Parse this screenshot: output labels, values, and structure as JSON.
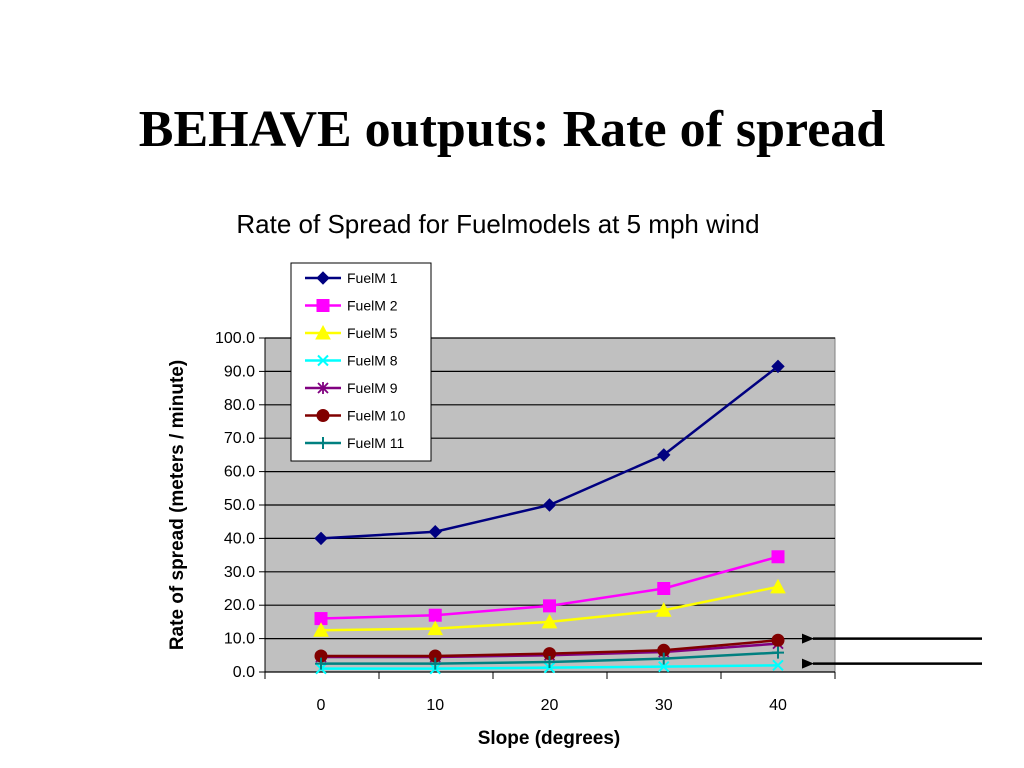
{
  "slide": {
    "title": "BEHAVE outputs: Rate of spread"
  },
  "chart_data": {
    "type": "line",
    "title": "Rate of Spread for Fuelmodels at 5 mph wind",
    "xlabel": "Slope (degrees)",
    "ylabel": "Rate of spread (meters / minute)",
    "x": [
      0,
      10,
      20,
      30,
      40
    ],
    "xlim": [
      0,
      40
    ],
    "ylim": [
      0,
      100
    ],
    "y_ticks": [
      "0.0",
      "10.0",
      "20.0",
      "30.0",
      "40.0",
      "50.0",
      "60.0",
      "70.0",
      "80.0",
      "90.0",
      "100.0"
    ],
    "x_ticks": [
      "0",
      "10",
      "20",
      "30",
      "40"
    ],
    "grid": true,
    "plot_background": "#c0c0c0",
    "legend_placement": "top-left (overlapping plot)",
    "series": [
      {
        "name": "FuelM 1",
        "color": "#000080",
        "marker": "diamond",
        "values": [
          40.0,
          42.0,
          50.0,
          65.0,
          91.5
        ]
      },
      {
        "name": "FuelM 2",
        "color": "#ff00ff",
        "marker": "square",
        "values": [
          16.0,
          17.0,
          19.8,
          25.0,
          34.5
        ]
      },
      {
        "name": "FuelM 5",
        "color": "#ffff00",
        "marker": "triangle",
        "values": [
          12.5,
          13.0,
          15.0,
          18.5,
          25.5
        ]
      },
      {
        "name": "FuelM 8",
        "color": "#00ffff",
        "marker": "x",
        "values": [
          1.0,
          1.0,
          1.3,
          1.6,
          2.0
        ]
      },
      {
        "name": "FuelM 9",
        "color": "#800080",
        "marker": "star",
        "values": [
          4.5,
          4.5,
          5.0,
          6.0,
          8.5
        ]
      },
      {
        "name": "FuelM 10",
        "color": "#800000",
        "marker": "circle",
        "values": [
          4.8,
          4.8,
          5.5,
          6.5,
          9.5
        ]
      },
      {
        "name": "FuelM 11",
        "color": "#008080",
        "marker": "plus",
        "values": [
          2.5,
          2.5,
          3.0,
          4.0,
          5.8
        ]
      }
    ],
    "annotations": [
      {
        "type": "arrow",
        "points_to_value": 10.0
      },
      {
        "type": "arrow",
        "points_to_value": 2.5
      }
    ]
  }
}
